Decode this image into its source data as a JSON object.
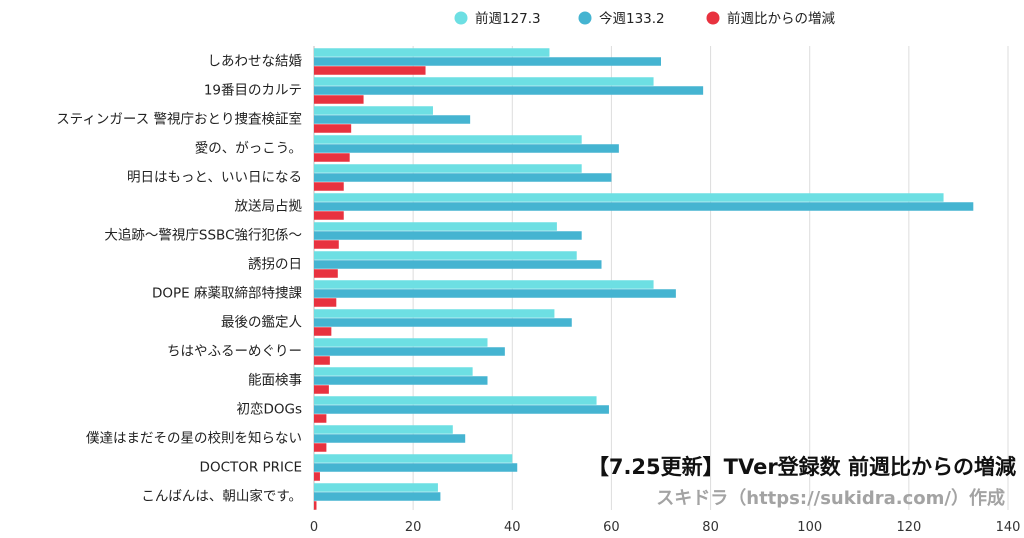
{
  "chart_data": {
    "type": "bar",
    "orientation": "horizontal",
    "title": "【7.25更新】TVer登録数 前週比からの増減",
    "credit": "スキドラ（https://sukidra.com/）作成",
    "categories": [
      "しあわせな結婚",
      "19番目のカルテ",
      "スティンガース 警視庁おとり捜査検証室",
      "愛の、がっこう。",
      "明日はもっと、いい日になる",
      "放送局占拠",
      "大追跡〜警視庁SSBC強行犯係〜",
      "誘拐の日",
      "DOPE 麻薬取締部特捜課",
      "最後の鑑定人",
      "ちはやふるーめぐりー",
      "能面検事",
      "初恋DOGs",
      "僕達はまだその星の校則を知らない",
      "DOCTOR PRICE",
      "こんばんは、朝山家です。"
    ],
    "series": [
      {
        "name": "前週127.3",
        "color": "#6ddfe3",
        "values": [
          47.5,
          68.5,
          24,
          54,
          54,
          127,
          49,
          53,
          68.5,
          48.5,
          35,
          32,
          57,
          28,
          40,
          25
        ]
      },
      {
        "name": "今週133.2",
        "color": "#45b4d1",
        "values": [
          70,
          78.5,
          31.5,
          61.5,
          60,
          133,
          54,
          58,
          73,
          52,
          38.5,
          35,
          59.5,
          30.5,
          41,
          25.5
        ]
      },
      {
        "name": "前週比からの増減",
        "color": "#e8323f",
        "values": [
          22.5,
          10,
          7.5,
          7.2,
          6,
          6,
          5,
          4.8,
          4.5,
          3.5,
          3.2,
          3,
          2.5,
          2.5,
          1.2,
          0.5
        ]
      }
    ],
    "xlim": [
      0,
      140
    ],
    "xticks": [
      0,
      20,
      40,
      60,
      80,
      100,
      120,
      140
    ],
    "grid": true,
    "legend_position": "top-center"
  }
}
